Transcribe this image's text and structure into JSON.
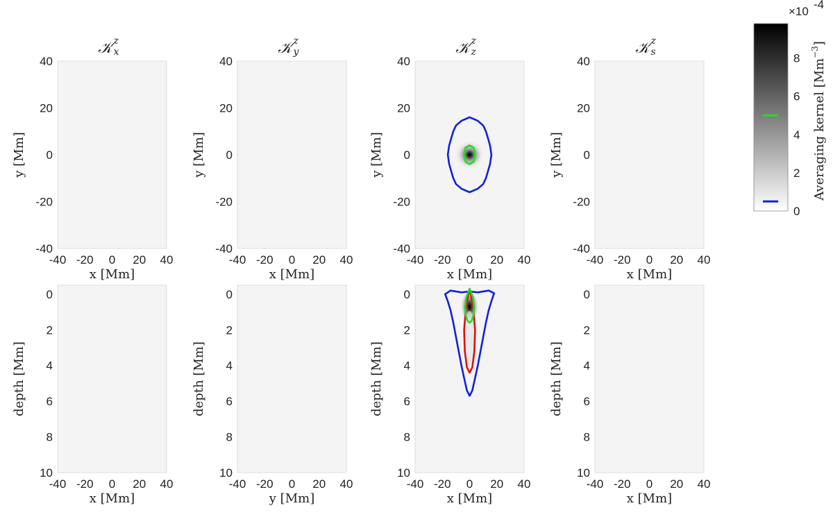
{
  "chart_data": {
    "type": "heatmap",
    "colorbar": {
      "label": "Averaging kernel [Mm",
      "label_exp": "−3",
      "label_close": "]",
      "multiplier": "×10",
      "multiplier_exp": "-4",
      "range": [
        0,
        9.8
      ],
      "ticks": [
        0,
        2,
        4,
        6,
        8
      ],
      "markers": [
        {
          "value": 5.0,
          "color": "#22dd22"
        },
        {
          "value": 0.5,
          "color": "#1020dd"
        }
      ]
    },
    "panels": [
      {
        "id": "top-1",
        "title_sub": "x",
        "title_sup": "z",
        "xlabel": "x [Mm]",
        "ylabel": "y [Mm]",
        "xlim": [
          -40,
          40
        ],
        "ylim": [
          -40,
          40
        ],
        "xticks": [
          -40,
          -20,
          0,
          20,
          40
        ],
        "yticks": [
          -40,
          -20,
          0,
          20,
          40
        ],
        "y_reversed": false,
        "peak": 0,
        "contours": []
      },
      {
        "id": "top-2",
        "title_sub": "y",
        "title_sup": "z",
        "xlabel": "x [Mm]",
        "ylabel": "y [Mm]",
        "xlim": [
          -40,
          40
        ],
        "ylim": [
          -40,
          40
        ],
        "xticks": [
          -40,
          -20,
          0,
          20,
          40
        ],
        "yticks": [
          -40,
          -20,
          0,
          20,
          40
        ],
        "y_reversed": false,
        "peak": 0,
        "contours": []
      },
      {
        "id": "top-3",
        "title_sub": "z",
        "title_sup": "z",
        "xlabel": "x [Mm]",
        "ylabel": "y [Mm]",
        "xlim": [
          -40,
          40
        ],
        "ylim": [
          -40,
          40
        ],
        "xticks": [
          -40,
          -20,
          0,
          20,
          40
        ],
        "yticks": [
          -40,
          -20,
          0,
          20,
          40
        ],
        "y_reversed": false,
        "peak": 9.8,
        "contours": [
          {
            "color": "#1020dd",
            "points": [
              [
                0,
                16
              ],
              [
                6,
                14.5
              ],
              [
                10,
                12.5
              ],
              [
                12,
                10
              ],
              [
                13.5,
                7
              ],
              [
                15,
                4
              ],
              [
                16,
                0
              ],
              [
                15,
                -4
              ],
              [
                13.5,
                -7
              ],
              [
                12,
                -10
              ],
              [
                10,
                -12.5
              ],
              [
                6,
                -14.5
              ],
              [
                0,
                -16
              ],
              [
                -6,
                -14.5
              ],
              [
                -10,
                -12.5
              ],
              [
                -12,
                -10
              ],
              [
                -13.5,
                -7
              ],
              [
                -15,
                -4
              ],
              [
                -16,
                0
              ],
              [
                -15,
                4
              ],
              [
                -13.5,
                7
              ],
              [
                -12,
                10
              ],
              [
                -10,
                12.5
              ],
              [
                -6,
                14.5
              ]
            ]
          },
          {
            "color": "#22dd22",
            "points": [
              [
                0,
                4
              ],
              [
                3,
                3
              ],
              [
                4,
                0
              ],
              [
                3,
                -3
              ],
              [
                0,
                -4
              ],
              [
                -3,
                -3
              ],
              [
                -4,
                0
              ],
              [
                -3,
                3
              ]
            ]
          }
        ]
      },
      {
        "id": "top-4",
        "title_sub": "s",
        "title_sup": "z",
        "xlabel": "x [Mm]",
        "ylabel": "y [Mm]",
        "xlim": [
          -40,
          40
        ],
        "ylim": [
          -40,
          40
        ],
        "xticks": [
          -40,
          -20,
          0,
          20,
          40
        ],
        "yticks": [
          -40,
          -20,
          0,
          20,
          40
        ],
        "y_reversed": false,
        "peak": 0,
        "contours": []
      },
      {
        "id": "bottom-1",
        "xlabel": "x [Mm]",
        "ylabel": "depth [Mm]",
        "xlim": [
          -40,
          40
        ],
        "ylim": [
          -0.5,
          10
        ],
        "xticks": [
          -40,
          -20,
          0,
          20,
          40
        ],
        "yticks": [
          0,
          2,
          4,
          6,
          8,
          10
        ],
        "y_reversed": true,
        "peak": 0,
        "contours": []
      },
      {
        "id": "bottom-2",
        "xlabel": "y [Mm]",
        "ylabel": "depth [Mm]",
        "xlim": [
          -40,
          40
        ],
        "ylim": [
          -0.5,
          10
        ],
        "xticks": [
          -40,
          -20,
          0,
          20,
          40
        ],
        "yticks": [
          0,
          2,
          4,
          6,
          8,
          10
        ],
        "y_reversed": true,
        "peak": 0,
        "contours": []
      },
      {
        "id": "bottom-3",
        "xlabel": "x [Mm]",
        "ylabel": "depth [Mm]",
        "xlim": [
          -40,
          40
        ],
        "ylim": [
          -0.5,
          10
        ],
        "xticks": [
          -40,
          -20,
          0,
          20,
          40
        ],
        "yticks": [
          0,
          2,
          4,
          6,
          8,
          10
        ],
        "y_reversed": true,
        "peak": 9.8,
        "contours": [
          {
            "color": "#1020dd",
            "points": [
              [
                -18,
                0.0
              ],
              [
                -14,
                -0.2
              ],
              [
                -6,
                -0.1
              ],
              [
                0,
                -0.15
              ],
              [
                6,
                -0.1
              ],
              [
                14,
                -0.2
              ],
              [
                18,
                -0.05
              ],
              [
                16,
                0.4
              ],
              [
                14,
                0.9
              ],
              [
                12,
                1.6
              ],
              [
                10,
                2.4
              ],
              [
                8,
                3.2
              ],
              [
                6,
                4.0
              ],
              [
                4,
                4.7
              ],
              [
                2,
                5.4
              ],
              [
                0,
                5.7
              ],
              [
                -2,
                5.4
              ],
              [
                -4,
                4.7
              ],
              [
                -6,
                4.0
              ],
              [
                -8,
                3.2
              ],
              [
                -10,
                2.4
              ],
              [
                -12,
                1.6
              ],
              [
                -14,
                0.9
              ],
              [
                -16,
                0.4
              ]
            ]
          },
          {
            "color": "#dd1010",
            "points": [
              [
                0,
                -0.3
              ],
              [
                2.5,
                0.6
              ],
              [
                4,
                2.0
              ],
              [
                3.5,
                3.2
              ],
              [
                2,
                4.1
              ],
              [
                0,
                4.4
              ],
              [
                -2,
                4.1
              ],
              [
                -3.5,
                3.2
              ],
              [
                -4,
                2.0
              ],
              [
                -2.5,
                0.6
              ]
            ]
          },
          {
            "color": "#22dd22",
            "points": [
              [
                0,
                -0.3
              ],
              [
                2.5,
                0.2
              ],
              [
                3.3,
                0.7
              ],
              [
                2.8,
                1.2
              ],
              [
                1.5,
                1.5
              ],
              [
                0,
                1.6
              ],
              [
                -1.5,
                1.5
              ],
              [
                -2.8,
                1.2
              ],
              [
                -3.3,
                0.7
              ],
              [
                -2.5,
                0.2
              ]
            ]
          }
        ]
      },
      {
        "id": "bottom-4",
        "xlabel": "x [Mm]",
        "ylabel": "depth [Mm]",
        "xlim": [
          -40,
          40
        ],
        "ylim": [
          -0.5,
          10
        ],
        "xticks": [
          -40,
          -20,
          0,
          20,
          40
        ],
        "yticks": [
          0,
          2,
          4,
          6,
          8,
          10
        ],
        "y_reversed": true,
        "peak": 0,
        "contours": []
      }
    ]
  }
}
